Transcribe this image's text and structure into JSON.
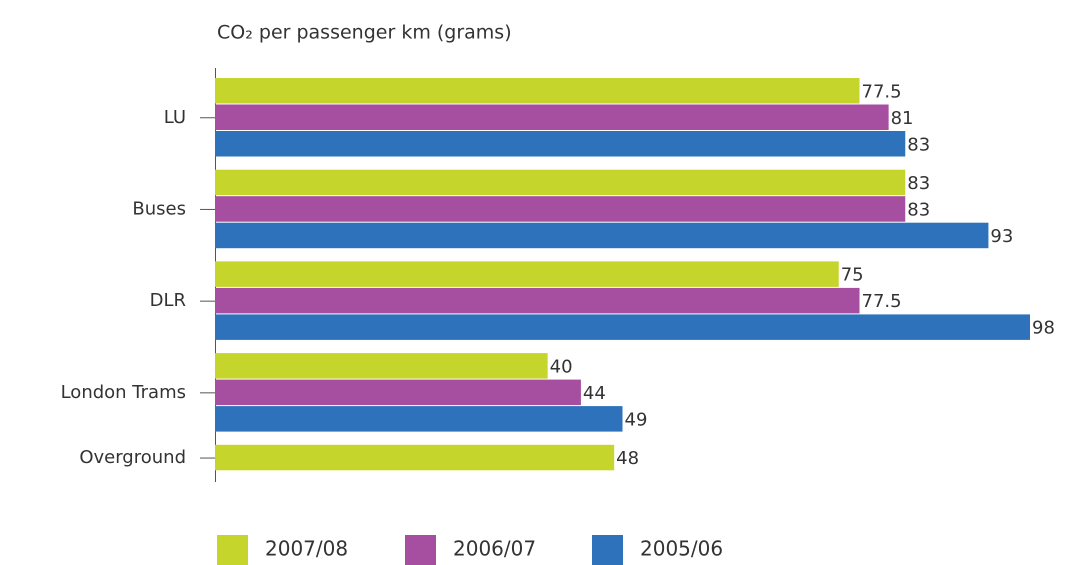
{
  "chart_data": {
    "type": "bar",
    "orientation": "horizontal",
    "title": "CO₂ per passenger km (grams)",
    "categories": [
      "LU",
      "Buses",
      "DLR",
      "London Trams",
      "Overground"
    ],
    "series": [
      {
        "name": "2007/08",
        "color": "#c5d52b",
        "values": [
          77.5,
          83,
          75,
          40,
          48
        ]
      },
      {
        "name": "2006/07",
        "color": "#a64ea0",
        "values": [
          81,
          83,
          77.5,
          44,
          null
        ]
      },
      {
        "name": "2005/06",
        "color": "#2e72bb",
        "values": [
          83,
          93,
          98,
          49,
          null
        ]
      }
    ],
    "legend": "bottom"
  }
}
